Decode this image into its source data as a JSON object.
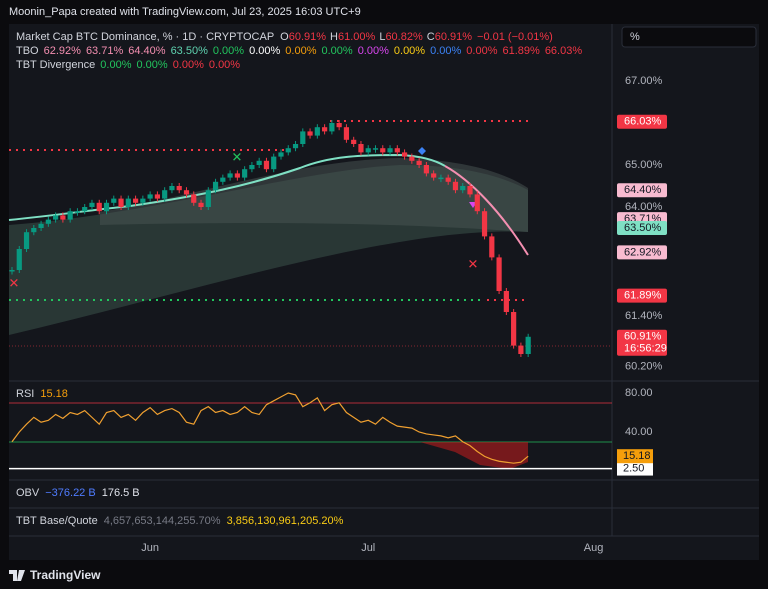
{
  "header": {
    "credit": "Moonin_Papa created with TradingView.com, Jul 23, 2025 16:03 UTC+9"
  },
  "legend": {
    "title": "Market Cap BTC Dominance, % · 1D · CRYPTOCAP",
    "ohlc": [
      {
        "key": "O",
        "value": "60.91%"
      },
      {
        "key": "H",
        "value": "61.00%"
      },
      {
        "key": "L",
        "value": "60.82%"
      },
      {
        "key": "C",
        "value": "60.91%"
      }
    ],
    "change": "−0.01 (−0.01%)"
  },
  "tbo": {
    "label": "TBO",
    "values": [
      {
        "text": "62.92%",
        "color": "#f48fb1"
      },
      {
        "text": "63.71%",
        "color": "#f48fb1"
      },
      {
        "text": "64.40%",
        "color": "#f48fb1"
      },
      {
        "text": "63.50%",
        "color": "#5fd3b0"
      },
      {
        "text": "0.00%",
        "color": "#22c55e"
      },
      {
        "text": "0.00%",
        "color": "#ffffff"
      },
      {
        "text": "0.00%",
        "color": "#f59e0b"
      },
      {
        "text": "0.00%",
        "color": "#22c55e"
      },
      {
        "text": "0.00%",
        "color": "#d946ef"
      },
      {
        "text": "0.00%",
        "color": "#facc15"
      },
      {
        "text": "0.00%",
        "color": "#3b82f6"
      },
      {
        "text": "0.00%",
        "color": "#f23645"
      },
      {
        "text": "61.89%",
        "color": "#f23645"
      },
      {
        "text": "66.03%",
        "color": "#f23645"
      }
    ]
  },
  "divergence": {
    "label": "TBT Divergence",
    "values": [
      {
        "text": "0.00%",
        "color": "#22c55e"
      },
      {
        "text": "0.00%",
        "color": "#22c55e"
      },
      {
        "text": "0.00%",
        "color": "#f23645"
      },
      {
        "text": "0.00%",
        "color": "#f23645"
      }
    ]
  },
  "scale_button": "%",
  "price_axis": [
    {
      "value": 67,
      "label": "67.00%"
    },
    {
      "value": 65,
      "label": "65.00%"
    },
    {
      "value": 64,
      "label": "64.00%"
    },
    {
      "value": 61.4,
      "label": "61.40%"
    },
    {
      "value": 60.2,
      "label": "60.20%"
    }
  ],
  "price_tags": [
    {
      "value": 66.03,
      "label": "66.03%",
      "bg": "#f23645",
      "fg": "#ffffff"
    },
    {
      "value": 64.4,
      "label": "64.40%",
      "bg": "#f8bbd0",
      "fg": "#131722"
    },
    {
      "value": 63.71,
      "label": "63.71%",
      "bg": "#f8bbd0",
      "fg": "#131722"
    },
    {
      "value": 63.5,
      "label": "63.50%",
      "bg": "#7fe0c4",
      "fg": "#131722"
    },
    {
      "value": 62.92,
      "label": "62.92%",
      "bg": "#f8bbd0",
      "fg": "#131722"
    },
    {
      "value": 61.89,
      "label": "61.89%",
      "bg": "#f23645",
      "fg": "#ffffff"
    }
  ],
  "last_price": {
    "value": 60.91,
    "label": "60.91%",
    "countdown": "16:56:29"
  },
  "closes": [
    62.5,
    63.0,
    63.4,
    63.5,
    63.6,
    63.7,
    63.8,
    63.7,
    63.9,
    63.9,
    64.0,
    64.1,
    63.9,
    64.1,
    64.2,
    64.0,
    64.2,
    64.1,
    64.2,
    64.3,
    64.2,
    64.4,
    64.5,
    64.4,
    64.3,
    64.1,
    64.0,
    64.4,
    64.6,
    64.7,
    64.8,
    64.7,
    64.9,
    65.0,
    65.1,
    64.9,
    65.2,
    65.3,
    65.4,
    65.5,
    65.8,
    65.7,
    65.9,
    65.8,
    66.0,
    65.9,
    65.6,
    65.5,
    65.3,
    65.4,
    65.4,
    65.3,
    65.4,
    65.3,
    65.2,
    65.1,
    65.0,
    64.8,
    64.7,
    64.7,
    64.6,
    64.4,
    64.5,
    64.3,
    63.9,
    63.3,
    62.8,
    62.0,
    61.5,
    60.7,
    60.5,
    60.91
  ],
  "rsi": {
    "label": "RSI",
    "value_label": "15.18",
    "values": [
      30,
      40,
      48,
      55,
      50,
      52,
      58,
      54,
      60,
      58,
      62,
      55,
      48,
      60,
      62,
      55,
      58,
      52,
      60,
      65,
      58,
      62,
      64,
      60,
      50,
      48,
      62,
      66,
      60,
      62,
      58,
      60,
      66,
      60,
      58,
      68,
      72,
      76,
      80,
      78,
      66,
      70,
      75,
      62,
      68,
      70,
      60,
      55,
      50,
      52,
      48,
      55,
      50,
      46,
      45,
      44,
      40,
      38,
      37,
      36,
      34,
      36,
      30,
      26,
      20,
      15,
      12,
      10,
      9,
      8,
      9,
      15.18
    ],
    "axis": [
      {
        "value": 80,
        "label": "80.00"
      },
      {
        "value": 40,
        "label": "40.00"
      },
      {
        "value": 2.5,
        "label": "2.50"
      }
    ]
  },
  "obv": {
    "label": "OBV",
    "value": "−376.22 B",
    "value2": "176.5 B"
  },
  "tbt_base_quote": {
    "label": "TBT Base/Quote",
    "value": "4,657,653,144,255.70%",
    "value2": "3,856,130,961,205.20%"
  },
  "x_axis": [
    {
      "day": 19,
      "label": "Jun"
    },
    {
      "day": 49,
      "label": "Jul"
    },
    {
      "day": 80,
      "label": "Aug"
    }
  ],
  "brand": "TradingView"
}
